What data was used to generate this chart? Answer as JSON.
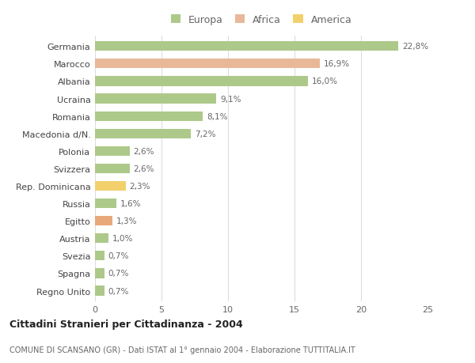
{
  "categories": [
    "Germania",
    "Marocco",
    "Albania",
    "Ucraina",
    "Romania",
    "Macedonia d/N.",
    "Polonia",
    "Svizzera",
    "Rep. Dominicana",
    "Russia",
    "Egitto",
    "Austria",
    "Svezia",
    "Spagna",
    "Regno Unito"
  ],
  "values": [
    22.8,
    16.9,
    16.0,
    9.1,
    8.1,
    7.2,
    2.6,
    2.6,
    2.3,
    1.6,
    1.3,
    1.0,
    0.7,
    0.7,
    0.7
  ],
  "labels": [
    "22,8%",
    "16,9%",
    "16,0%",
    "9,1%",
    "8,1%",
    "7,2%",
    "2,6%",
    "2,6%",
    "2,3%",
    "1,6%",
    "1,3%",
    "1,0%",
    "0,7%",
    "0,7%",
    "0,7%"
  ],
  "colors": [
    "#adc98a",
    "#e8b898",
    "#adc98a",
    "#adc98a",
    "#adc98a",
    "#adc98a",
    "#adc98a",
    "#adc98a",
    "#f2d06b",
    "#adc98a",
    "#e8a87a",
    "#adc98a",
    "#adc98a",
    "#adc98a",
    "#adc98a"
  ],
  "legend_labels": [
    "Europa",
    "Africa",
    "America"
  ],
  "legend_colors": [
    "#adc98a",
    "#e8b898",
    "#f2d06b"
  ],
  "title": "Cittadini Stranieri per Cittadinanza - 2004",
  "subtitle": "COMUNE DI SCANSANO (GR) - Dati ISTAT al 1° gennaio 2004 - Elaborazione TUTTITALIA.IT",
  "xlim": [
    0,
    25
  ],
  "xticks": [
    0,
    5,
    10,
    15,
    20,
    25
  ],
  "background_color": "#ffffff",
  "grid_color": "#dddddd",
  "bar_height": 0.55
}
